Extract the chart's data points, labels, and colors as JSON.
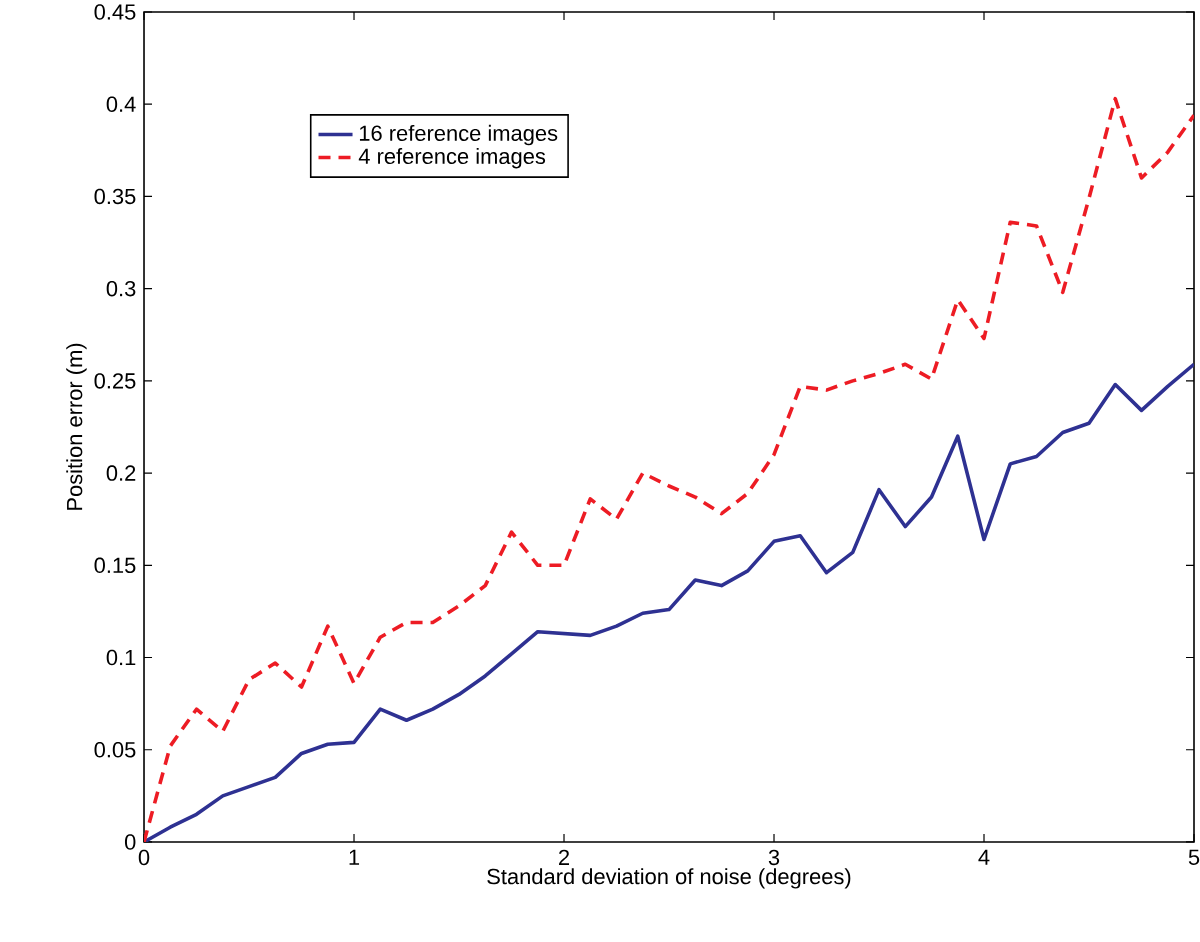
{
  "chart_data": {
    "type": "line",
    "xlabel": "Standard deviation of noise (degrees)",
    "ylabel": "Position error (m)",
    "x": [
      0,
      0.125,
      0.25,
      0.375,
      0.5,
      0.625,
      0.75,
      0.875,
      1,
      1.125,
      1.25,
      1.375,
      1.5,
      1.625,
      1.75,
      1.875,
      2,
      2.125,
      2.25,
      2.375,
      2.5,
      2.625,
      2.75,
      2.875,
      3,
      3.125,
      3.25,
      3.375,
      3.5,
      3.625,
      3.75,
      3.875,
      4,
      4.125,
      4.25,
      4.375,
      4.5,
      4.625,
      4.75,
      4.875,
      5
    ],
    "series": [
      {
        "name": "16 reference images",
        "color": "#2e3192",
        "line_style": "solid",
        "values": [
          0,
          0.008,
          0.015,
          0.025,
          0.03,
          0.035,
          0.048,
          0.053,
          0.054,
          0.072,
          0.066,
          0.072,
          0.08,
          0.09,
          0.102,
          0.114,
          0.113,
          0.112,
          0.117,
          0.124,
          0.126,
          0.142,
          0.139,
          0.147,
          0.163,
          0.166,
          0.146,
          0.157,
          0.191,
          0.171,
          0.187,
          0.22,
          0.164,
          0.205,
          0.209,
          0.222,
          0.227,
          0.248,
          0.234,
          0.247,
          0.259
        ]
      },
      {
        "name": "4 reference images",
        "color": "#ed1c24",
        "line_style": "dashed",
        "values": [
          0,
          0.052,
          0.072,
          0.06,
          0.088,
          0.097,
          0.084,
          0.117,
          0.086,
          0.111,
          0.119,
          0.119,
          0.128,
          0.139,
          0.168,
          0.15,
          0.15,
          0.186,
          0.175,
          0.2,
          0.193,
          0.187,
          0.178,
          0.189,
          0.21,
          0.247,
          0.245,
          0.25,
          0.254,
          0.259,
          0.251,
          0.294,
          0.273,
          0.336,
          0.334,
          0.298,
          0.349,
          0.403,
          0.36,
          0.374,
          0.394
        ]
      }
    ],
    "xlim": [
      0,
      5
    ],
    "ylim": [
      0,
      0.45
    ],
    "xticks": [
      0,
      1,
      2,
      3,
      4,
      5
    ],
    "yticks": [
      0,
      0.05,
      0.1,
      0.15,
      0.2,
      0.25,
      0.3,
      0.35,
      0.4,
      0.45
    ],
    "grid": false,
    "legend": "top left",
    "marker": "none"
  }
}
